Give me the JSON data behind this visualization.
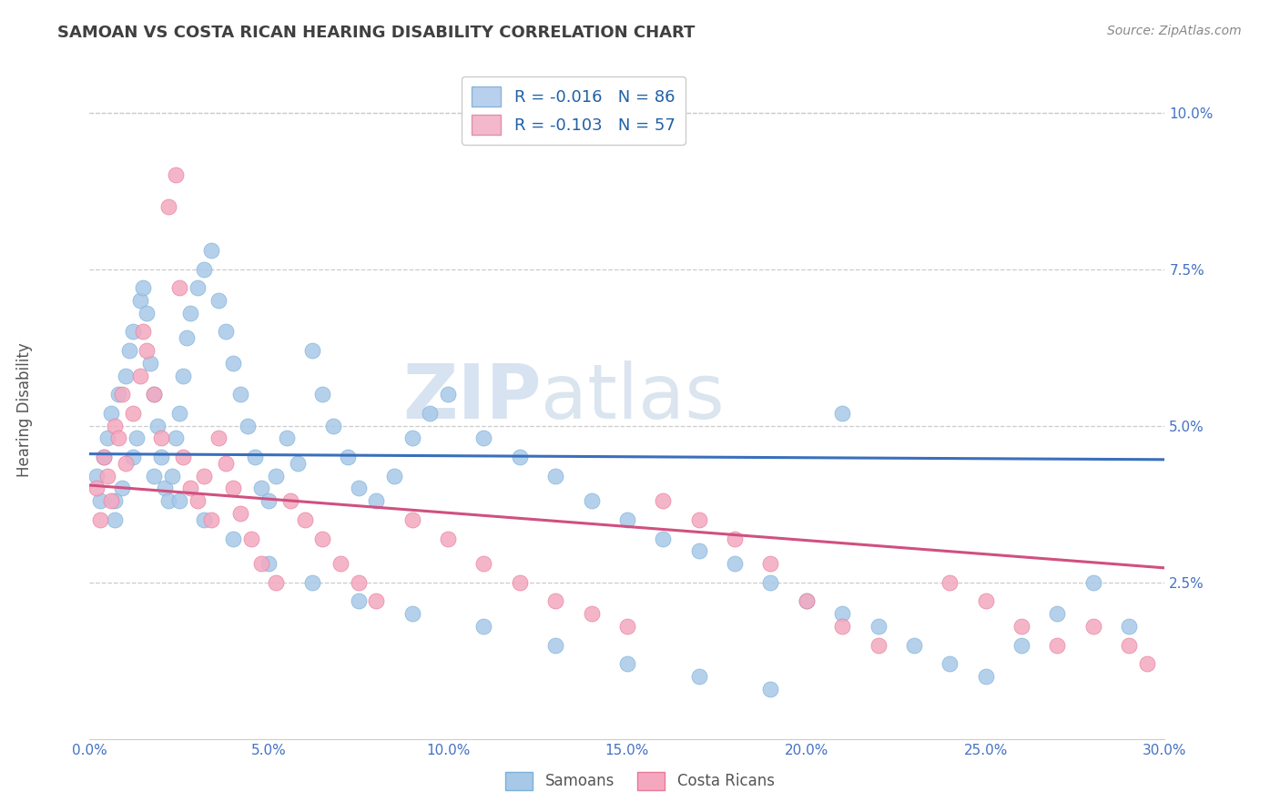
{
  "title": "SAMOAN VS COSTA RICAN HEARING DISABILITY CORRELATION CHART",
  "source": "Source: ZipAtlas.com",
  "ylabel": "Hearing Disability",
  "xlim": [
    0.0,
    0.3
  ],
  "ylim": [
    0.0,
    0.105
  ],
  "xticks": [
    0.0,
    0.05,
    0.1,
    0.15,
    0.2,
    0.25,
    0.3
  ],
  "xticklabels": [
    "0.0%",
    "5.0%",
    "10.0%",
    "15.0%",
    "20.0%",
    "25.0%",
    "30.0%"
  ],
  "yticks": [
    0.025,
    0.05,
    0.075,
    0.1
  ],
  "yticklabels": [
    "2.5%",
    "5.0%",
    "7.5%",
    "10.0%"
  ],
  "samoan_color": "#a8c8e8",
  "costa_rican_color": "#f4a8c0",
  "samoan_edge_color": "#7ab0d8",
  "costa_edge_color": "#e87898",
  "samoan_line_color": "#3a6fbc",
  "costa_rican_line_color": "#d05080",
  "watermark_zip": "ZIP",
  "watermark_atlas": "atlas",
  "legend_label_samoan": "R = -0.016   N = 86",
  "legend_label_costa": "R = -0.103   N = 57",
  "background_color": "#ffffff",
  "grid_color": "#cccccc",
  "title_color": "#404040",
  "axis_label_color": "#4472c4",
  "bottom_legend_color": "#555555",
  "samoan_line_intercept": 0.0455,
  "samoan_line_slope": -0.003,
  "costa_line_intercept": 0.0405,
  "costa_line_slope": -0.044,
  "samoan_scatter_x": [
    0.002,
    0.003,
    0.004,
    0.005,
    0.006,
    0.007,
    0.008,
    0.009,
    0.01,
    0.011,
    0.012,
    0.013,
    0.014,
    0.015,
    0.016,
    0.017,
    0.018,
    0.019,
    0.02,
    0.021,
    0.022,
    0.023,
    0.024,
    0.025,
    0.026,
    0.027,
    0.028,
    0.03,
    0.032,
    0.034,
    0.036,
    0.038,
    0.04,
    0.042,
    0.044,
    0.046,
    0.048,
    0.05,
    0.052,
    0.055,
    0.058,
    0.062,
    0.065,
    0.068,
    0.072,
    0.075,
    0.08,
    0.085,
    0.09,
    0.095,
    0.1,
    0.11,
    0.12,
    0.13,
    0.14,
    0.15,
    0.16,
    0.17,
    0.18,
    0.19,
    0.2,
    0.21,
    0.22,
    0.23,
    0.24,
    0.25,
    0.26,
    0.27,
    0.28,
    0.29,
    0.007,
    0.012,
    0.018,
    0.025,
    0.032,
    0.04,
    0.05,
    0.062,
    0.075,
    0.09,
    0.11,
    0.13,
    0.15,
    0.17,
    0.19,
    0.21
  ],
  "samoan_scatter_y": [
    0.042,
    0.038,
    0.045,
    0.048,
    0.052,
    0.035,
    0.055,
    0.04,
    0.058,
    0.062,
    0.065,
    0.048,
    0.07,
    0.072,
    0.068,
    0.06,
    0.055,
    0.05,
    0.045,
    0.04,
    0.038,
    0.042,
    0.048,
    0.052,
    0.058,
    0.064,
    0.068,
    0.072,
    0.075,
    0.078,
    0.07,
    0.065,
    0.06,
    0.055,
    0.05,
    0.045,
    0.04,
    0.038,
    0.042,
    0.048,
    0.044,
    0.062,
    0.055,
    0.05,
    0.045,
    0.04,
    0.038,
    0.042,
    0.048,
    0.052,
    0.055,
    0.048,
    0.045,
    0.042,
    0.038,
    0.035,
    0.032,
    0.03,
    0.028,
    0.025,
    0.022,
    0.02,
    0.018,
    0.015,
    0.012,
    0.01,
    0.015,
    0.02,
    0.025,
    0.018,
    0.038,
    0.045,
    0.042,
    0.038,
    0.035,
    0.032,
    0.028,
    0.025,
    0.022,
    0.02,
    0.018,
    0.015,
    0.012,
    0.01,
    0.008,
    0.052
  ],
  "costa_scatter_x": [
    0.002,
    0.003,
    0.004,
    0.005,
    0.006,
    0.007,
    0.008,
    0.009,
    0.01,
    0.012,
    0.014,
    0.016,
    0.018,
    0.02,
    0.022,
    0.024,
    0.026,
    0.028,
    0.03,
    0.032,
    0.034,
    0.036,
    0.038,
    0.04,
    0.042,
    0.045,
    0.048,
    0.052,
    0.056,
    0.06,
    0.065,
    0.07,
    0.075,
    0.08,
    0.09,
    0.1,
    0.11,
    0.12,
    0.13,
    0.14,
    0.15,
    0.16,
    0.17,
    0.18,
    0.19,
    0.2,
    0.21,
    0.22,
    0.24,
    0.25,
    0.26,
    0.27,
    0.28,
    0.29,
    0.295,
    0.015,
    0.025
  ],
  "costa_scatter_y": [
    0.04,
    0.035,
    0.045,
    0.042,
    0.038,
    0.05,
    0.048,
    0.055,
    0.044,
    0.052,
    0.058,
    0.062,
    0.055,
    0.048,
    0.085,
    0.09,
    0.045,
    0.04,
    0.038,
    0.042,
    0.035,
    0.048,
    0.044,
    0.04,
    0.036,
    0.032,
    0.028,
    0.025,
    0.038,
    0.035,
    0.032,
    0.028,
    0.025,
    0.022,
    0.035,
    0.032,
    0.028,
    0.025,
    0.022,
    0.02,
    0.018,
    0.038,
    0.035,
    0.032,
    0.028,
    0.022,
    0.018,
    0.015,
    0.025,
    0.022,
    0.018,
    0.015,
    0.018,
    0.015,
    0.012,
    0.065,
    0.072
  ]
}
